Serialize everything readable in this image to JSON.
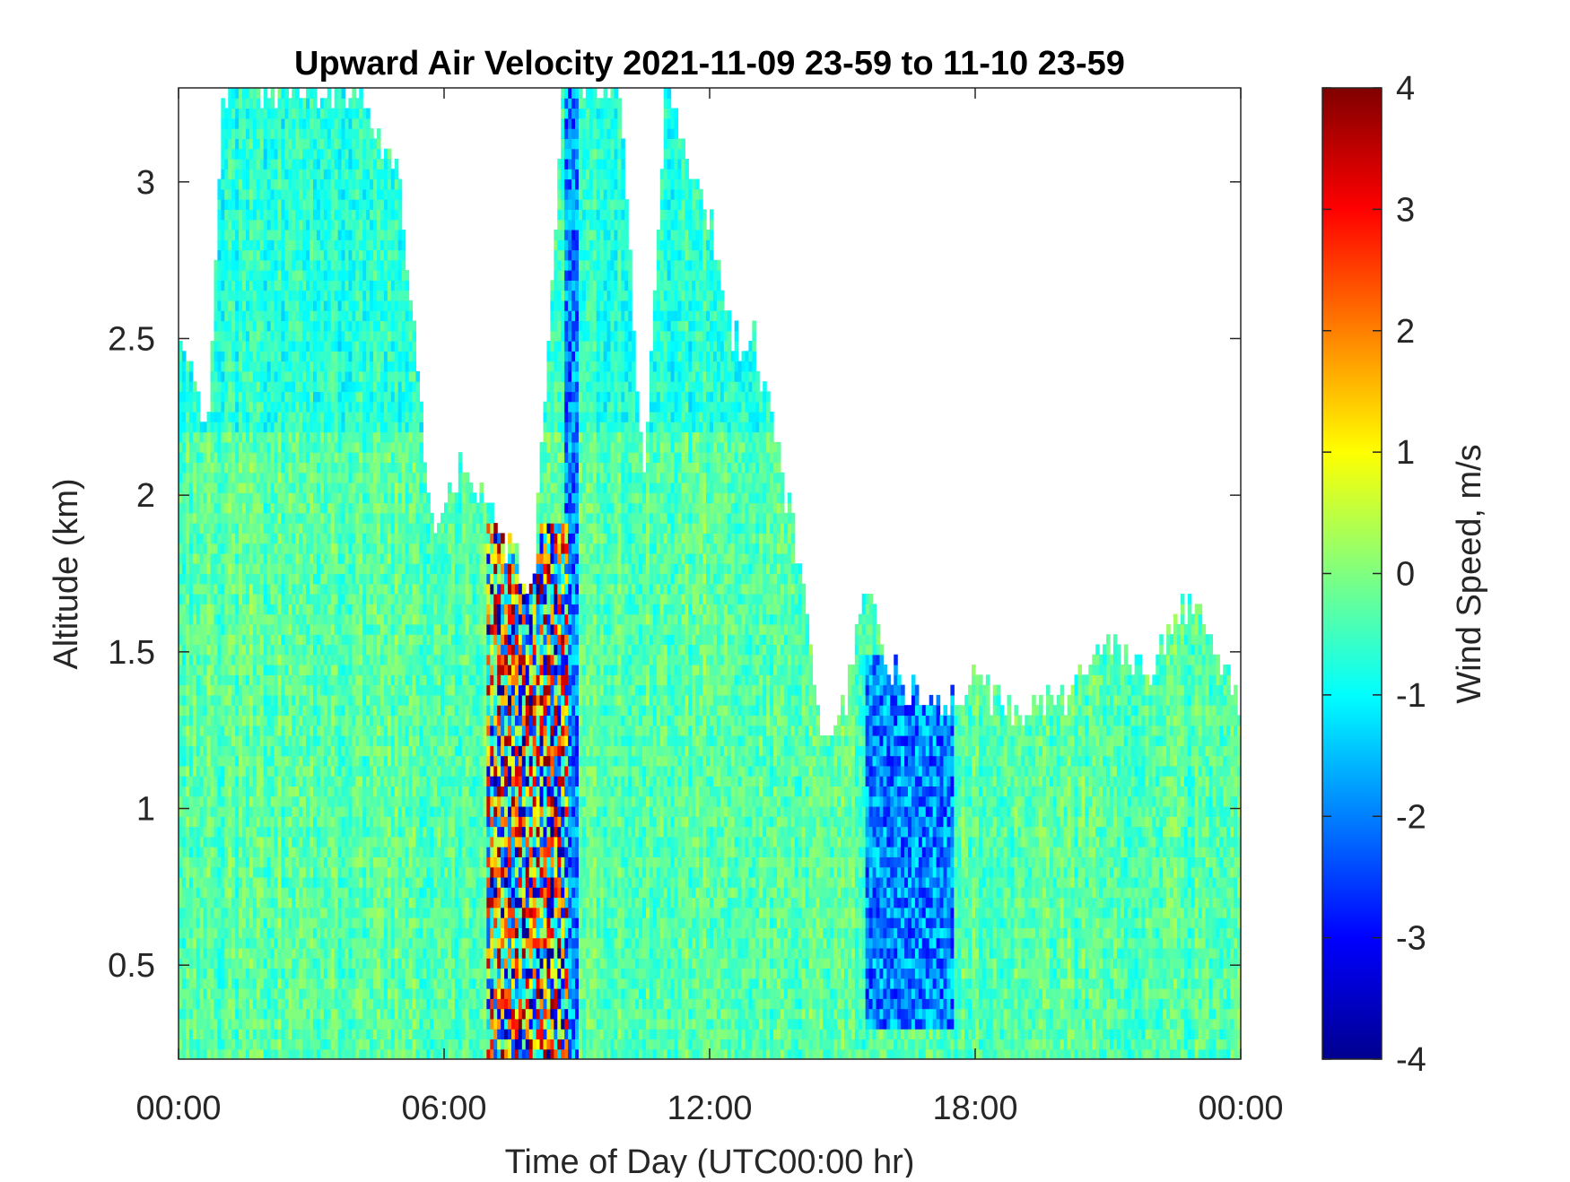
{
  "chart_data": {
    "type": "heatmap",
    "title": "Upward Air Velocity 2021-11-09 23-59 to 11-10 23-59",
    "xlabel": "Time of Day (UTC00:00 hr)",
    "ylabel": "Altitude (km)",
    "x_ticks": [
      {
        "value": 0,
        "label": "00:00"
      },
      {
        "value": 6,
        "label": "06:00"
      },
      {
        "value": 12,
        "label": "12:00"
      },
      {
        "value": 18,
        "label": "18:00"
      },
      {
        "value": 24,
        "label": "00:00"
      }
    ],
    "y_ticks": [
      {
        "value": 0.5,
        "label": "0.5"
      },
      {
        "value": 1,
        "label": "1"
      },
      {
        "value": 1.5,
        "label": "1.5"
      },
      {
        "value": 2,
        "label": "2"
      },
      {
        "value": 2.5,
        "label": "2.5"
      },
      {
        "value": 3,
        "label": "3"
      }
    ],
    "xlim": [
      0,
      24
    ],
    "ylim": [
      0.2,
      3.3
    ],
    "colorbar": {
      "label": "Wind Speed, m/s",
      "colormap": "jet",
      "range": [
        -4,
        4
      ],
      "ticks": [
        {
          "value": 4,
          "label": "4"
        },
        {
          "value": 3,
          "label": "3"
        },
        {
          "value": 2,
          "label": "2"
        },
        {
          "value": 1,
          "label": "1"
        },
        {
          "value": 0,
          "label": "0"
        },
        {
          "value": -1,
          "label": "-1"
        },
        {
          "value": -2,
          "label": "-2"
        },
        {
          "value": -3,
          "label": "-3"
        },
        {
          "value": -4,
          "label": "-4"
        }
      ]
    },
    "data_top_km_by_hour": [
      {
        "hour": 0,
        "top": 2.5
      },
      {
        "hour": 0.7,
        "top": 2.2
      },
      {
        "hour": 1,
        "top": 3.3
      },
      {
        "hour": 2,
        "top": 3.3
      },
      {
        "hour": 3,
        "top": 3.3
      },
      {
        "hour": 4,
        "top": 3.3
      },
      {
        "hour": 5,
        "top": 3.0
      },
      {
        "hour": 5.7,
        "top": 1.9
      },
      {
        "hour": 6.5,
        "top": 2.1
      },
      {
        "hour": 7.2,
        "top": 1.9
      },
      {
        "hour": 8,
        "top": 1.7
      },
      {
        "hour": 8.7,
        "top": 3.3
      },
      {
        "hour": 9.2,
        "top": 3.3
      },
      {
        "hour": 10,
        "top": 3.3
      },
      {
        "hour": 10.5,
        "top": 2.0
      },
      {
        "hour": 11,
        "top": 3.3
      },
      {
        "hour": 12,
        "top": 2.9
      },
      {
        "hour": 12.5,
        "top": 2.5
      },
      {
        "hour": 13,
        "top": 2.5
      },
      {
        "hour": 14,
        "top": 1.8
      },
      {
        "hour": 14.5,
        "top": 1.25
      },
      {
        "hour": 15,
        "top": 1.3
      },
      {
        "hour": 15.5,
        "top": 1.7
      },
      {
        "hour": 16,
        "top": 1.45
      },
      {
        "hour": 17,
        "top": 1.3
      },
      {
        "hour": 17.5,
        "top": 1.35
      },
      {
        "hour": 18,
        "top": 1.4
      },
      {
        "hour": 19,
        "top": 1.3
      },
      {
        "hour": 20,
        "top": 1.35
      },
      {
        "hour": 21,
        "top": 1.5
      },
      {
        "hour": 22,
        "top": 1.45
      },
      {
        "hour": 22.5,
        "top": 1.6
      },
      {
        "hour": 23,
        "top": 1.7
      },
      {
        "hour": 24,
        "top": 1.3
      }
    ],
    "velocity_features": [
      {
        "description": "strong updrafts and downdrafts",
        "hour_range": [
          7.0,
          8.8
        ],
        "km_range": [
          0.2,
          1.9
        ],
        "min": -4,
        "max": 4
      },
      {
        "description": "persistent downdraft column",
        "hour_range": [
          8.7,
          9.0
        ],
        "km_range": [
          0.2,
          3.3
        ],
        "min": -3,
        "max": -1
      },
      {
        "description": "downdraft streaks",
        "hour_range": [
          15.5,
          17.5
        ],
        "km_range": [
          0.3,
          1.5
        ],
        "min": -3,
        "max": -1
      }
    ]
  }
}
